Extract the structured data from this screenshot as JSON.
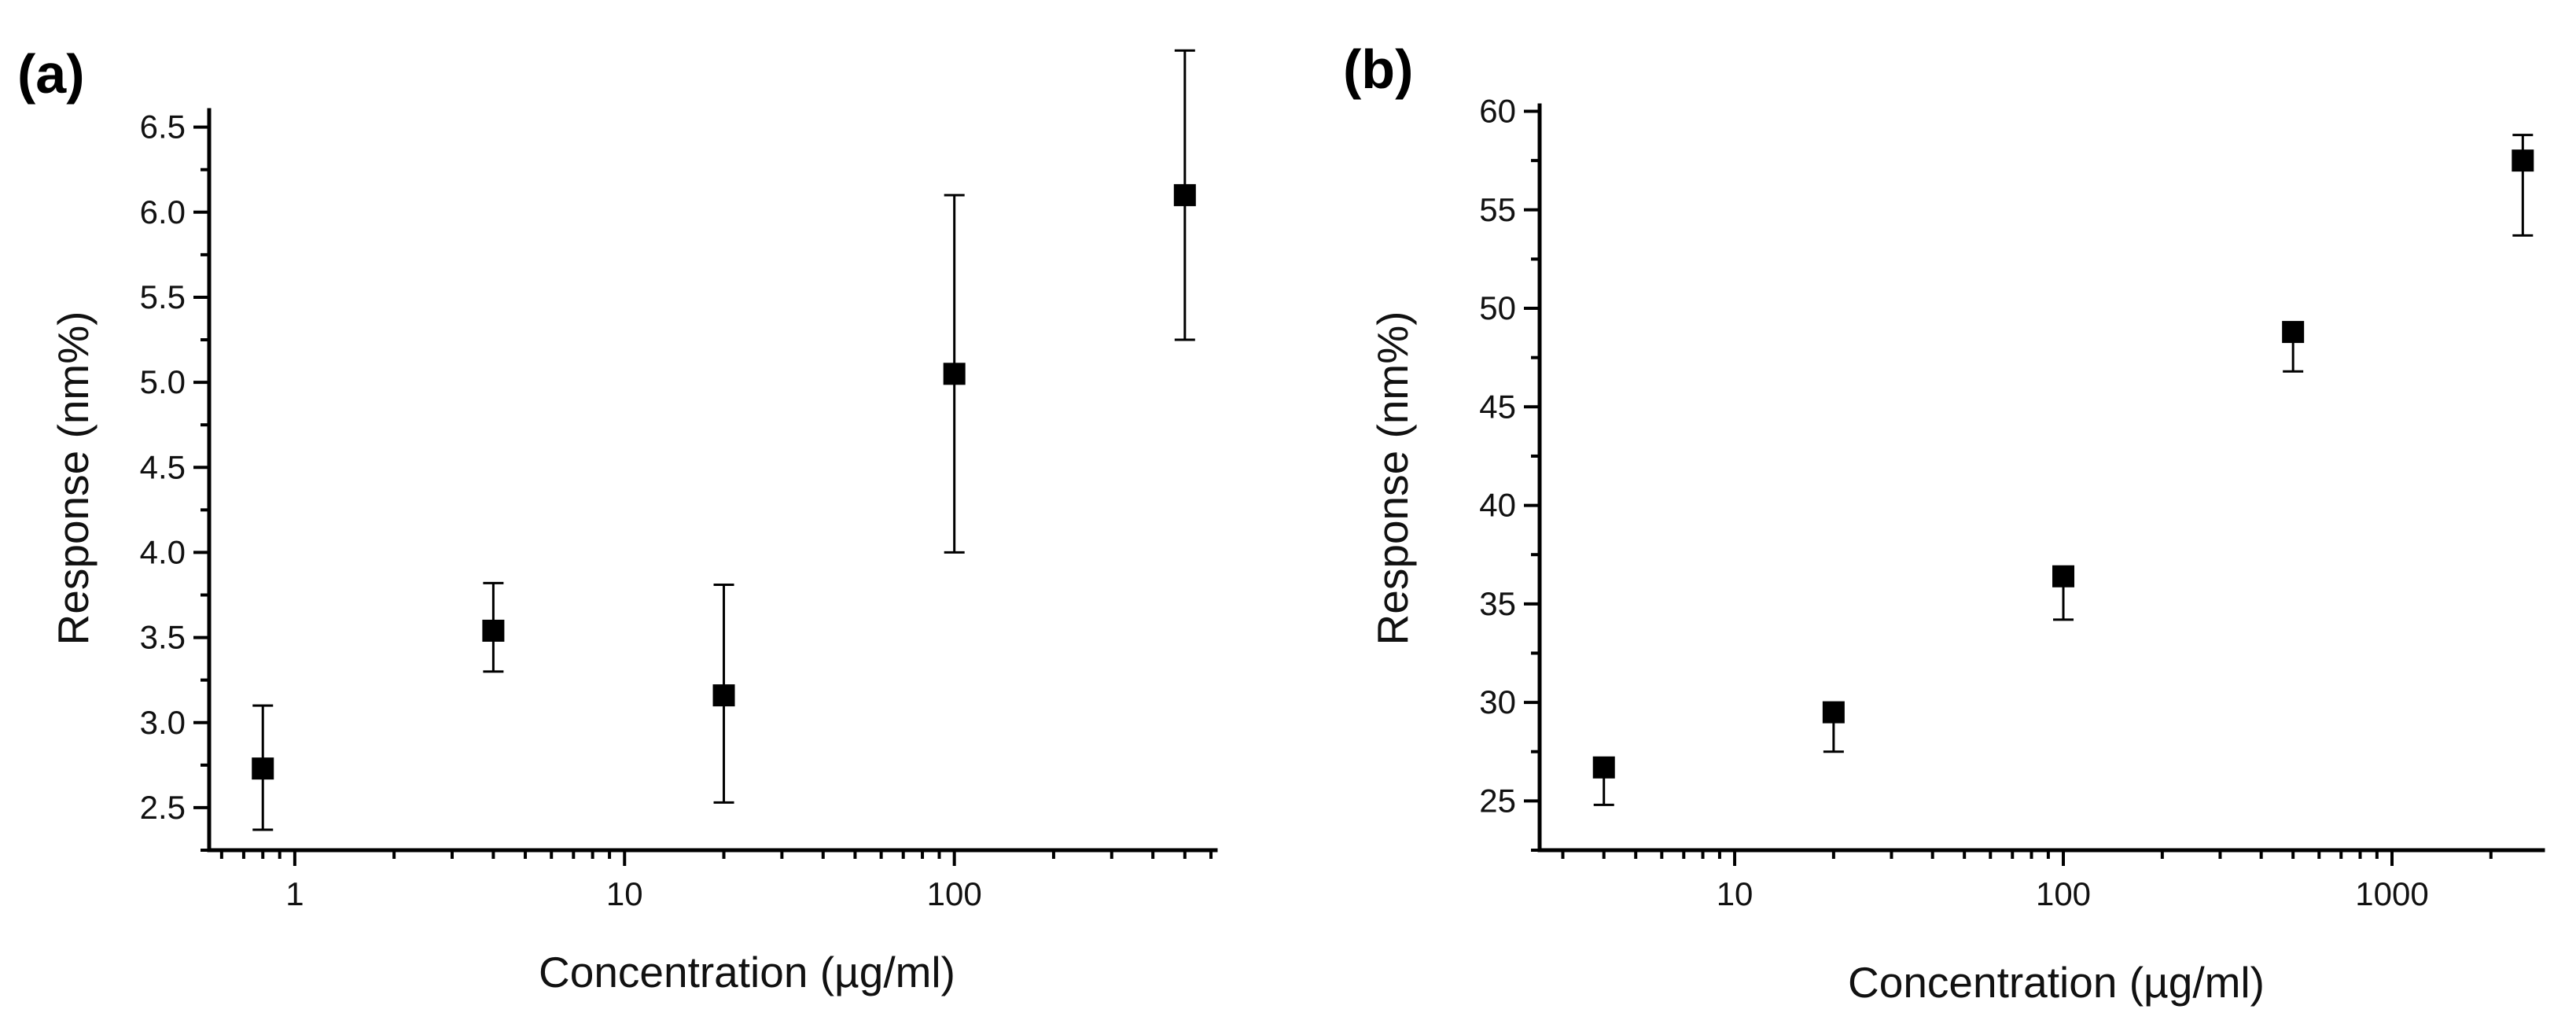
{
  "chart_data": [
    {
      "type": "scatter",
      "panel_label": "(a)",
      "xlabel": "Concentration (µg/ml)",
      "ylabel": "Response (nm%)",
      "xscale": "log",
      "xlim": [
        0.55,
        620
      ],
      "ylim": [
        2.25,
        6.6
      ],
      "xticks": [
        {
          "value": 1,
          "label": "1"
        },
        {
          "value": 10,
          "label": "10"
        },
        {
          "value": 100,
          "label": "100"
        }
      ],
      "yticks": [
        {
          "value": 2.5,
          "label": "2.5"
        },
        {
          "value": 3.0,
          "label": "3.0"
        },
        {
          "value": 3.5,
          "label": "3.5"
        },
        {
          "value": 4.0,
          "label": "4.0"
        },
        {
          "value": 4.5,
          "label": "4.5"
        },
        {
          "value": 5.0,
          "label": "5.0"
        },
        {
          "value": 5.5,
          "label": "5.5"
        },
        {
          "value": 6.0,
          "label": "6.0"
        },
        {
          "value": 6.5,
          "label": "6.5"
        }
      ],
      "points": [
        {
          "x": 0.8,
          "y": 2.73,
          "low": 2.37,
          "high": 3.1
        },
        {
          "x": 4,
          "y": 3.54,
          "low": 3.3,
          "high": 3.82
        },
        {
          "x": 20,
          "y": 3.16,
          "low": 2.53,
          "high": 3.81
        },
        {
          "x": 100,
          "y": 5.05,
          "low": 4.0,
          "high": 6.1
        },
        {
          "x": 500,
          "y": 6.1,
          "low": 5.25,
          "high": 6.95
        }
      ]
    },
    {
      "type": "scatter",
      "panel_label": "(b)",
      "xlabel": "Concentration (µg/ml)",
      "ylabel": "Response (nm%)",
      "xscale": "log",
      "xlim": [
        2.55,
        2880
      ],
      "ylim": [
        22.5,
        60.3
      ],
      "xticks": [
        {
          "value": 10,
          "label": "10"
        },
        {
          "value": 100,
          "label": "100"
        },
        {
          "value": 1000,
          "label": "1000"
        }
      ],
      "yticks": [
        {
          "value": 25,
          "label": "25"
        },
        {
          "value": 30,
          "label": "30"
        },
        {
          "value": 35,
          "label": "35"
        },
        {
          "value": 40,
          "label": "40"
        },
        {
          "value": 45,
          "label": "45"
        },
        {
          "value": 50,
          "label": "50"
        },
        {
          "value": 55,
          "label": "55"
        },
        {
          "value": 60,
          "label": "60"
        }
      ],
      "points": [
        {
          "x": 4,
          "y": 26.7,
          "low": 24.8,
          "high": 26.7
        },
        {
          "x": 20,
          "y": 29.5,
          "low": 27.5,
          "high": 29.5
        },
        {
          "x": 100,
          "y": 36.4,
          "low": 34.2,
          "high": 36.4
        },
        {
          "x": 500,
          "y": 48.8,
          "low": 46.8,
          "high": 48.8
        },
        {
          "x": 2500,
          "y": 57.5,
          "low": 53.7,
          "high": 58.8
        }
      ]
    }
  ]
}
